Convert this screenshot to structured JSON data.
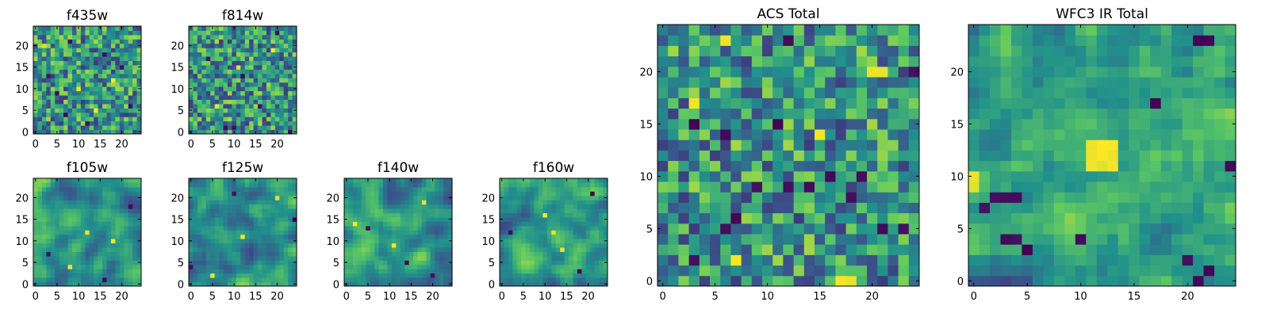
{
  "figure": {
    "background": "#ffffff"
  },
  "colormap": {
    "name": "viridis",
    "stops": [
      "#440154",
      "#3b528b",
      "#21918c",
      "#5ec962",
      "#fde725"
    ]
  },
  "chart_data": [
    {
      "type": "heatmap",
      "id": "f435w",
      "title": "f435w",
      "grid_size": 25,
      "xlim": [
        0,
        25
      ],
      "ylim": [
        0,
        25
      ],
      "xticks": [
        0,
        5,
        10,
        15,
        20
      ],
      "yticks": [
        0,
        5,
        10,
        15,
        20
      ],
      "pattern": "noise",
      "smoothness": 0,
      "dark_cells": [
        [
          5,
          9
        ],
        [
          7,
          4
        ],
        [
          16,
          18
        ],
        [
          8,
          21
        ],
        [
          20,
          15
        ],
        [
          12,
          2
        ],
        [
          3,
          13
        ],
        [
          22,
          6
        ]
      ],
      "bright_cells": [
        [
          10,
          10
        ],
        [
          14,
          5
        ],
        [
          2,
          20
        ],
        [
          18,
          12
        ]
      ],
      "seed": 11
    },
    {
      "type": "heatmap",
      "id": "f814w",
      "title": "f814w",
      "grid_size": 25,
      "xlim": [
        0,
        25
      ],
      "ylim": [
        0,
        25
      ],
      "xticks": [
        0,
        5,
        10,
        15,
        20
      ],
      "yticks": [
        0,
        5,
        10,
        15,
        20
      ],
      "pattern": "noise",
      "smoothness": 0,
      "dark_cells": [
        [
          8,
          1
        ],
        [
          10,
          1
        ],
        [
          20,
          23
        ],
        [
          23,
          0
        ],
        [
          4,
          17
        ],
        [
          16,
          6
        ],
        [
          12,
          13
        ]
      ],
      "bright_cells": [
        [
          11,
          15
        ],
        [
          6,
          6
        ],
        [
          19,
          19
        ]
      ],
      "seed": 23
    },
    {
      "type": "heatmap",
      "id": "f105w",
      "title": "f105w",
      "grid_size": 25,
      "xlim": [
        0,
        25
      ],
      "ylim": [
        0,
        25
      ],
      "xticks": [
        0,
        5,
        10,
        15,
        20
      ],
      "yticks": [
        0,
        5,
        10,
        15,
        20
      ],
      "pattern": "smooth",
      "smoothness": 2,
      "dark_cells": [
        [
          3,
          7
        ],
        [
          16,
          1
        ],
        [
          22,
          18
        ]
      ],
      "bright_cells": [
        [
          12,
          12
        ],
        [
          8,
          4
        ],
        [
          18,
          10
        ]
      ],
      "seed": 37
    },
    {
      "type": "heatmap",
      "id": "f125w",
      "title": "f125w",
      "grid_size": 25,
      "xlim": [
        0,
        25
      ],
      "ylim": [
        0,
        25
      ],
      "xticks": [
        0,
        5,
        10,
        15,
        20
      ],
      "yticks": [
        0,
        5,
        10,
        15,
        20
      ],
      "pattern": "smooth",
      "smoothness": 2,
      "dark_cells": [
        [
          0,
          4
        ],
        [
          24,
          15
        ],
        [
          10,
          21
        ]
      ],
      "bright_cells": [
        [
          12,
          11
        ],
        [
          20,
          20
        ],
        [
          5,
          2
        ]
      ],
      "seed": 41
    },
    {
      "type": "heatmap",
      "id": "f140w",
      "title": "f140w",
      "grid_size": 25,
      "xlim": [
        0,
        25
      ],
      "ylim": [
        0,
        25
      ],
      "xticks": [
        0,
        5,
        10,
        15,
        20
      ],
      "yticks": [
        0,
        5,
        10,
        15,
        20
      ],
      "pattern": "smooth",
      "smoothness": 2,
      "dark_cells": [
        [
          14,
          5
        ],
        [
          5,
          13
        ],
        [
          20,
          2
        ]
      ],
      "bright_cells": [
        [
          2,
          14
        ],
        [
          11,
          9
        ],
        [
          18,
          19
        ]
      ],
      "seed": 53
    },
    {
      "type": "heatmap",
      "id": "f160w",
      "title": "f160w",
      "grid_size": 25,
      "xlim": [
        0,
        25
      ],
      "ylim": [
        0,
        25
      ],
      "xticks": [
        0,
        5,
        10,
        15,
        20
      ],
      "yticks": [
        0,
        5,
        10,
        15,
        20
      ],
      "pattern": "smooth",
      "smoothness": 2,
      "dark_cells": [
        [
          2,
          12
        ],
        [
          18,
          3
        ],
        [
          21,
          21
        ]
      ],
      "bright_cells": [
        [
          12,
          12
        ],
        [
          10,
          16
        ],
        [
          14,
          8
        ]
      ],
      "seed": 67
    },
    {
      "type": "heatmap",
      "id": "acs_total",
      "title": "ACS Total",
      "grid_size": 25,
      "xlim": [
        0,
        25
      ],
      "ylim": [
        0,
        25
      ],
      "xticks": [
        0,
        5,
        10,
        15,
        20
      ],
      "yticks": [
        0,
        5,
        10,
        15,
        20
      ],
      "pattern": "noise",
      "smoothness": 0,
      "dark_cells": [
        [
          3,
          15
        ],
        [
          6,
          14
        ],
        [
          11,
          15
        ],
        [
          16,
          10
        ],
        [
          19,
          10
        ],
        [
          18,
          8
        ],
        [
          7,
          6
        ],
        [
          12,
          9
        ],
        [
          14,
          9
        ],
        [
          24,
          20
        ],
        [
          21,
          5
        ],
        [
          23,
          5
        ],
        [
          12,
          23
        ],
        [
          3,
          2
        ],
        [
          6,
          5
        ],
        [
          9,
          9
        ]
      ],
      "bright_cells": [
        [
          6,
          23
        ],
        [
          17,
          0
        ],
        [
          18,
          0
        ],
        [
          20,
          20
        ],
        [
          21,
          20
        ],
        [
          7,
          2
        ],
        [
          3,
          17
        ],
        [
          15,
          14
        ]
      ],
      "seed": 79
    },
    {
      "type": "heatmap",
      "id": "wfc3_ir_total",
      "title": "WFC3 IR Total",
      "grid_size": 25,
      "xlim": [
        0,
        25
      ],
      "ylim": [
        0,
        25
      ],
      "xticks": [
        0,
        5,
        10,
        15,
        20
      ],
      "yticks": [
        0,
        5,
        10,
        15,
        20
      ],
      "pattern": "smooth",
      "smoothness": 1,
      "dark_cells": [
        [
          3,
          4
        ],
        [
          4,
          4
        ],
        [
          5,
          3
        ],
        [
          2,
          8
        ],
        [
          3,
          8
        ],
        [
          4,
          8
        ],
        [
          1,
          7
        ],
        [
          10,
          4
        ],
        [
          21,
          0
        ],
        [
          22,
          1
        ],
        [
          24,
          11
        ],
        [
          20,
          2
        ],
        [
          17,
          17
        ],
        [
          21,
          23
        ],
        [
          22,
          23
        ]
      ],
      "bright_cells": [
        [
          12,
          12
        ],
        [
          13,
          12
        ],
        [
          12,
          13
        ],
        [
          11,
          12
        ],
        [
          12,
          11
        ],
        [
          13,
          13
        ],
        [
          11,
          13
        ],
        [
          13,
          11
        ],
        [
          11,
          11
        ],
        [
          0,
          9
        ],
        [
          0,
          10
        ]
      ],
      "seed": 97
    }
  ]
}
